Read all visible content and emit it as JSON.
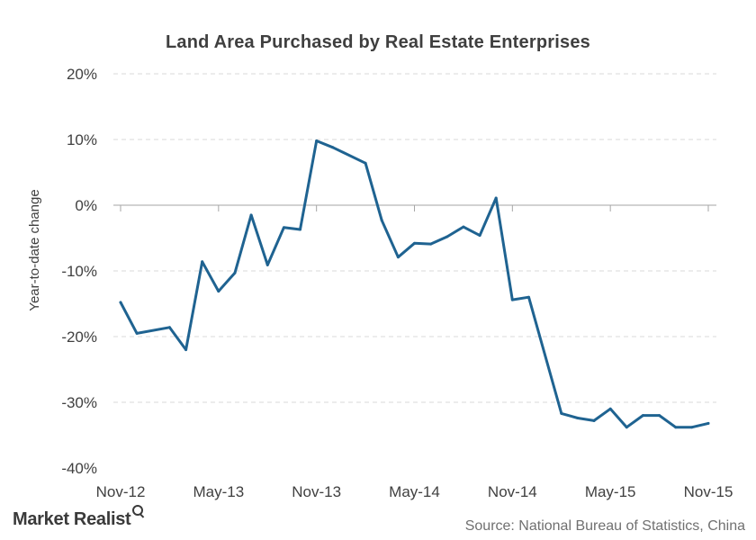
{
  "chart_data": {
    "type": "line",
    "title": "Land Area Purchased  by Real Estate Enterprises",
    "ylabel": "Year-to-date change",
    "xlabel": "",
    "ylim": [
      -40,
      20
    ],
    "yticks": [
      "20%",
      "10%",
      "0%",
      "-10%",
      "-20%",
      "-30%",
      "-40%"
    ],
    "ytick_values": [
      20,
      10,
      0,
      -10,
      -20,
      -30,
      -40
    ],
    "xtick_labels": [
      "Nov-12",
      "May-13",
      "Nov-13",
      "May-14",
      "Nov-14",
      "May-15",
      "Nov-15"
    ],
    "xtick_months": [
      "2012-11",
      "2013-05",
      "2013-11",
      "2014-05",
      "2014-11",
      "2015-05",
      "2015-11"
    ],
    "grid": true,
    "legend": "none",
    "colors": {
      "line": "#1f6391",
      "grid": "#d9d9d9",
      "axis": "#a6a6a6"
    },
    "series": [
      {
        "x": [
          "2012-11",
          "2012-12",
          "2013-02",
          "2013-03",
          "2013-04",
          "2013-05",
          "2013-06",
          "2013-07",
          "2013-08",
          "2013-09",
          "2013-10",
          "2013-11",
          "2013-12",
          "2014-02",
          "2014-03",
          "2014-04",
          "2014-05",
          "2014-06",
          "2014-07",
          "2014-08",
          "2014-09",
          "2014-10",
          "2014-11",
          "2014-12",
          "2015-02",
          "2015-03",
          "2015-04",
          "2015-05",
          "2015-06",
          "2015-07",
          "2015-08",
          "2015-09",
          "2015-10",
          "2015-11"
        ],
        "values": [
          -14.8,
          -19.5,
          -18.6,
          -22.0,
          -8.6,
          -13.1,
          -10.3,
          -1.5,
          -9.1,
          -3.4,
          -3.7,
          9.8,
          8.8,
          6.4,
          -2.3,
          -7.9,
          -5.8,
          -5.9,
          -4.8,
          -3.3,
          -4.6,
          1.1,
          -14.4,
          -14.0,
          -31.7,
          -32.4,
          -32.8,
          -31.0,
          -33.8,
          -32.0,
          -32.0,
          -33.8,
          -33.8,
          -33.2
        ]
      }
    ]
  },
  "branding": {
    "logo_text": "Market Realist",
    "logo_icon": "magnifier-icon"
  },
  "source_note": "Source: National Bureau of Statistics, China"
}
